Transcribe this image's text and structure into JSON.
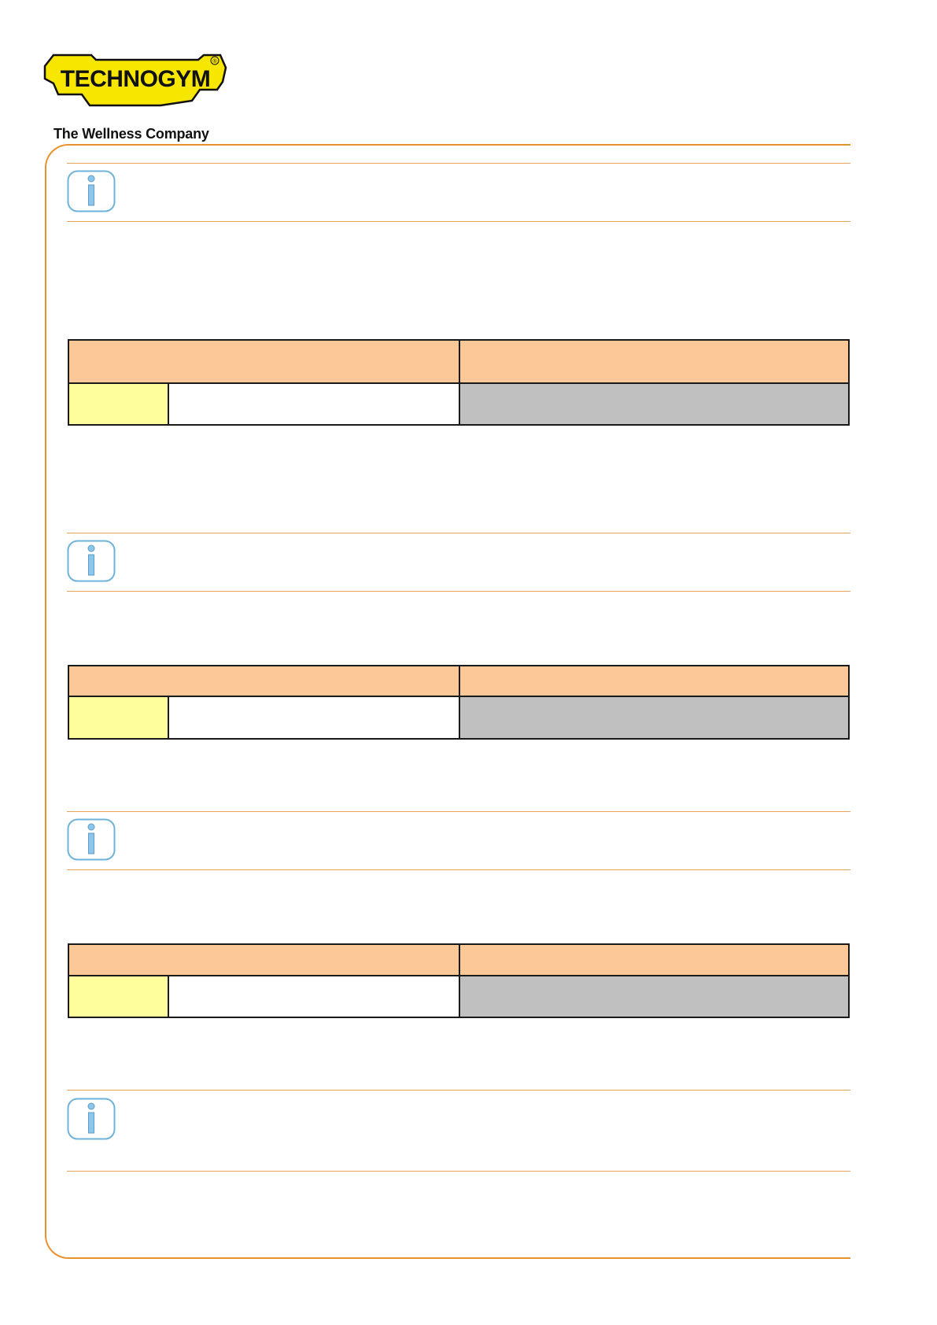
{
  "header": {
    "logo_text": "TECHNOGYM",
    "registered_mark": "®",
    "tagline": "The Wellness Company",
    "brand_yellow": "#f7e600"
  },
  "sections": [
    {
      "note_icon": "info-icon",
      "table": {
        "header_color": "#fdc897",
        "left_cell_color": "#fefe9c",
        "right_cell_color": "#c0c0c0"
      }
    },
    {
      "note_icon": "info-icon",
      "table": {
        "header_color": "#fdc897",
        "left_cell_color": "#fefe9c",
        "right_cell_color": "#c0c0c0"
      }
    },
    {
      "note_icon": "info-icon",
      "table": {
        "header_color": "#fdc897",
        "left_cell_color": "#fefe9c",
        "right_cell_color": "#c0c0c0"
      }
    },
    {
      "note_icon": "info-icon"
    }
  ],
  "frame_color": "#e8922e"
}
